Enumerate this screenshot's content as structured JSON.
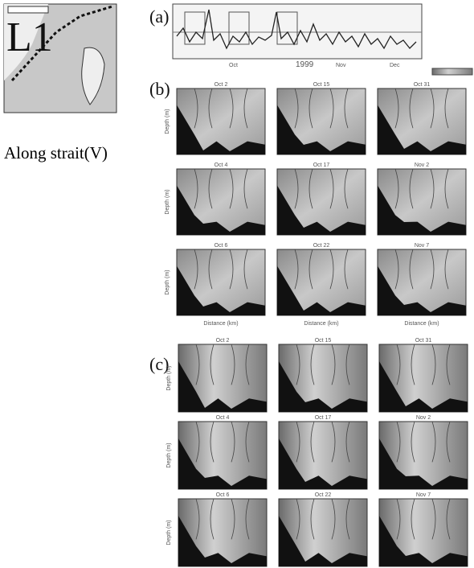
{
  "map": {
    "label": "L1"
  },
  "caption": "Along strait(V)",
  "panel_a": {
    "label": "(a)",
    "year": "1999",
    "months": [
      "Oct",
      "Nov",
      "Dec"
    ]
  },
  "panel_b": {
    "label": "(b)",
    "titles": [
      "Oct 2",
      "Oct 15",
      "Oct 31",
      "Oct 4",
      "Oct 17",
      "Nov 2",
      "Oct 6",
      "Oct 22",
      "Nov 7"
    ],
    "y_label": "Depth (m)",
    "x_label": "Distance (km)"
  },
  "panel_c": {
    "label": "(c)",
    "titles": [
      "Oct 2",
      "Oct 15",
      "Oct 31",
      "Oct 4",
      "Oct 17",
      "Nov 2",
      "Oct 6",
      "Oct 22",
      "Nov 7"
    ],
    "y_label": "Depth (m)"
  }
}
